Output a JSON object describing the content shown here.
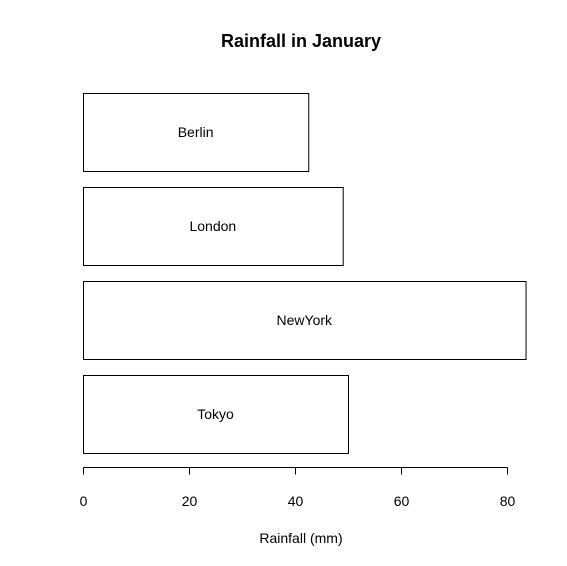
{
  "chart_data": {
    "type": "bar",
    "orientation": "horizontal",
    "title": "Rainfall in January",
    "xlabel": "Rainfall (mm)",
    "ylabel": "",
    "categories": [
      "Berlin",
      "London",
      "NewYork",
      "Tokyo"
    ],
    "values": [
      42.5,
      49,
      83.5,
      50
    ],
    "xlim": [
      0,
      80
    ],
    "x_ticks": [
      0,
      20,
      40,
      60,
      80
    ],
    "grid": false,
    "bar_fill": "#ffffff",
    "bar_stroke": "#000000"
  }
}
